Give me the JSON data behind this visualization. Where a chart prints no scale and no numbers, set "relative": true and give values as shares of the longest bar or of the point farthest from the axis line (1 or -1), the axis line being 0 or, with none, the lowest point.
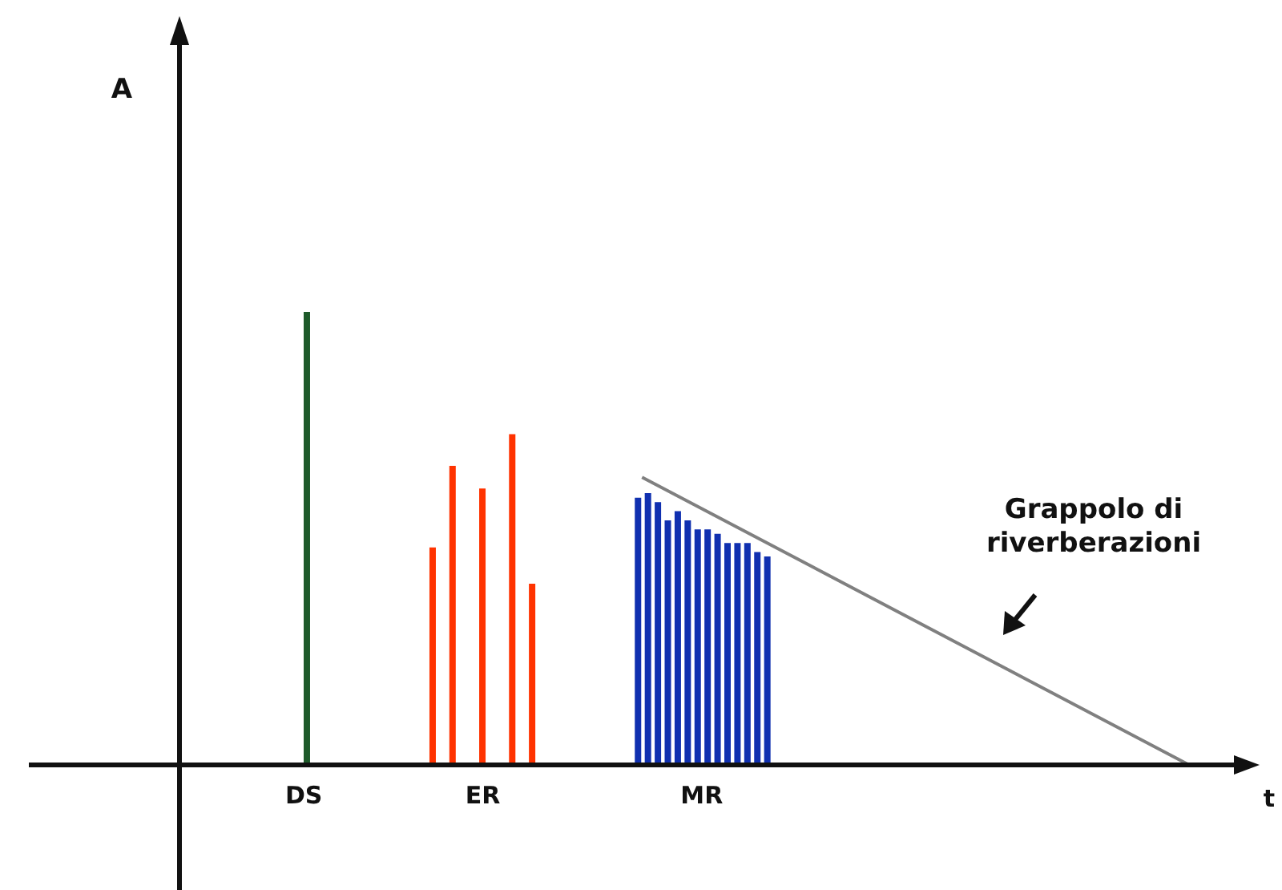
{
  "chart_data": {
    "type": "bar",
    "relative": true,
    "xlabel": "t",
    "annotations": [
      "A",
      "Grappolo di riverberazioni"
    ],
    "categories": [
      null,
      null,
      null,
      null,
      null,
      null,
      null,
      null,
      null,
      null,
      null,
      null,
      "DS",
      null,
      null,
      null,
      null,
      null,
      null,
      null,
      null,
      null,
      null,
      null,
      null,
      null,
      null,
      null,
      null,
      null,
      "ER",
      null,
      null,
      null,
      null,
      null,
      null,
      null,
      null,
      null,
      null,
      null,
      null,
      null,
      null,
      null,
      null,
      null,
      null,
      null,
      null,
      null,
      "MR",
      null,
      null,
      null,
      null,
      null,
      null,
      null,
      null,
      null,
      null,
      null,
      null,
      null,
      null,
      null,
      null,
      null,
      null,
      null,
      null,
      null,
      null,
      null,
      null,
      null,
      null,
      null,
      null,
      null,
      null,
      null,
      null,
      null,
      null,
      null,
      null,
      null,
      null,
      null,
      null,
      null,
      null,
      null,
      null,
      null,
      null,
      null,
      null,
      null,
      null,
      null,
      null,
      null
    ],
    "series": [
      {
        "color": "#1e5a2a",
        "values": [
          null,
          null,
          null,
          null,
          null,
          null,
          null,
          null,
          null,
          null,
          null,
          null,
          1,
          null,
          null,
          null,
          null,
          null,
          null,
          null,
          null,
          null,
          null,
          null,
          null,
          null,
          null,
          null,
          null,
          null,
          null,
          null,
          null,
          null,
          null,
          null,
          null,
          null,
          null,
          null,
          null,
          null,
          null,
          null,
          null,
          null,
          null,
          null,
          null,
          null,
          null,
          null,
          null,
          null,
          null,
          null,
          null,
          null,
          null,
          null,
          null,
          null,
          null,
          null,
          null,
          null,
          null,
          null,
          null,
          null,
          null,
          null,
          null,
          null,
          null,
          null,
          null,
          null,
          null,
          null,
          null,
          null,
          null,
          null,
          null,
          null,
          null,
          null,
          null,
          null,
          null,
          null,
          null,
          null,
          null,
          null,
          null,
          null,
          null,
          null,
          null,
          null,
          null,
          null,
          null,
          null
        ]
      },
      {
        "color": "#ff3300",
        "values": [
          null,
          null,
          null,
          null,
          null,
          null,
          null,
          null,
          null,
          null,
          null,
          null,
          null,
          null,
          null,
          null,
          null,
          null,
          null,
          null,
          null,
          null,
          null,
          null,
          null,
          0.48,
          null,
          0.66,
          null,
          null,
          0.61,
          null,
          null,
          0.73,
          null,
          0.4,
          null,
          null,
          null,
          null,
          null,
          null,
          null,
          null,
          null,
          null,
          null,
          null,
          null,
          null,
          null,
          null,
          null,
          null,
          null,
          null,
          null,
          null,
          null,
          null,
          null,
          null,
          null,
          null,
          null,
          null,
          null,
          null,
          null,
          null,
          null,
          null,
          null,
          null,
          null,
          null,
          null,
          null,
          null,
          null,
          null,
          null,
          null,
          null,
          null,
          null,
          null,
          null,
          null,
          null,
          null,
          null,
          null,
          null,
          null,
          null,
          null,
          null,
          null,
          null,
          null,
          null,
          null,
          null,
          null,
          null
        ]
      },
      {
        "color": "#1030b0",
        "values": [
          null,
          null,
          null,
          null,
          null,
          null,
          null,
          null,
          null,
          null,
          null,
          null,
          null,
          null,
          null,
          null,
          null,
          null,
          null,
          null,
          null,
          null,
          null,
          null,
          null,
          null,
          null,
          null,
          null,
          null,
          null,
          null,
          null,
          null,
          null,
          null,
          null,
          null,
          null,
          null,
          null,
          null,
          null,
          null,
          null,
          null,
          0.59,
          0.6,
          0.58,
          0.54,
          0.56,
          0.54,
          0.52,
          0.52,
          0.51,
          0.49,
          0.49,
          0.49,
          0.47,
          0.46,
          null,
          null,
          null,
          null,
          null,
          null,
          null,
          null,
          null,
          null,
          null,
          null,
          null,
          null,
          null,
          null,
          null,
          null,
          null,
          null,
          null,
          null,
          null,
          null,
          null,
          null,
          null,
          null,
          null,
          null,
          null,
          null,
          null,
          null,
          null,
          null,
          null,
          null,
          null,
          null,
          null,
          null,
          null,
          null,
          null,
          null
        ]
      },
      {
        "type": "line",
        "color": "#808080",
        "values": [
          null,
          null,
          null,
          null,
          null,
          null,
          null,
          null,
          null,
          null,
          null,
          null,
          null,
          null,
          null,
          null,
          null,
          null,
          null,
          null,
          null,
          null,
          null,
          null,
          null,
          null,
          null,
          null,
          null,
          null,
          null,
          null,
          null,
          null,
          null,
          null,
          null,
          null,
          null,
          null,
          null,
          null,
          null,
          null,
          null,
          null,
          0.635,
          null,
          null,
          null,
          null,
          null,
          null,
          null,
          null,
          null,
          null,
          null,
          null,
          null,
          null,
          null,
          null,
          null,
          null,
          null,
          null,
          null,
          null,
          null,
          null,
          null,
          null,
          null,
          null,
          null,
          null,
          null,
          null,
          null,
          null,
          null,
          null,
          null,
          null,
          null,
          null,
          null,
          null,
          null,
          null,
          null,
          null,
          null,
          null,
          null,
          null,
          null,
          null,
          null,
          null,
          0,
          null,
          null,
          null,
          null
        ]
      }
    ]
  }
}
